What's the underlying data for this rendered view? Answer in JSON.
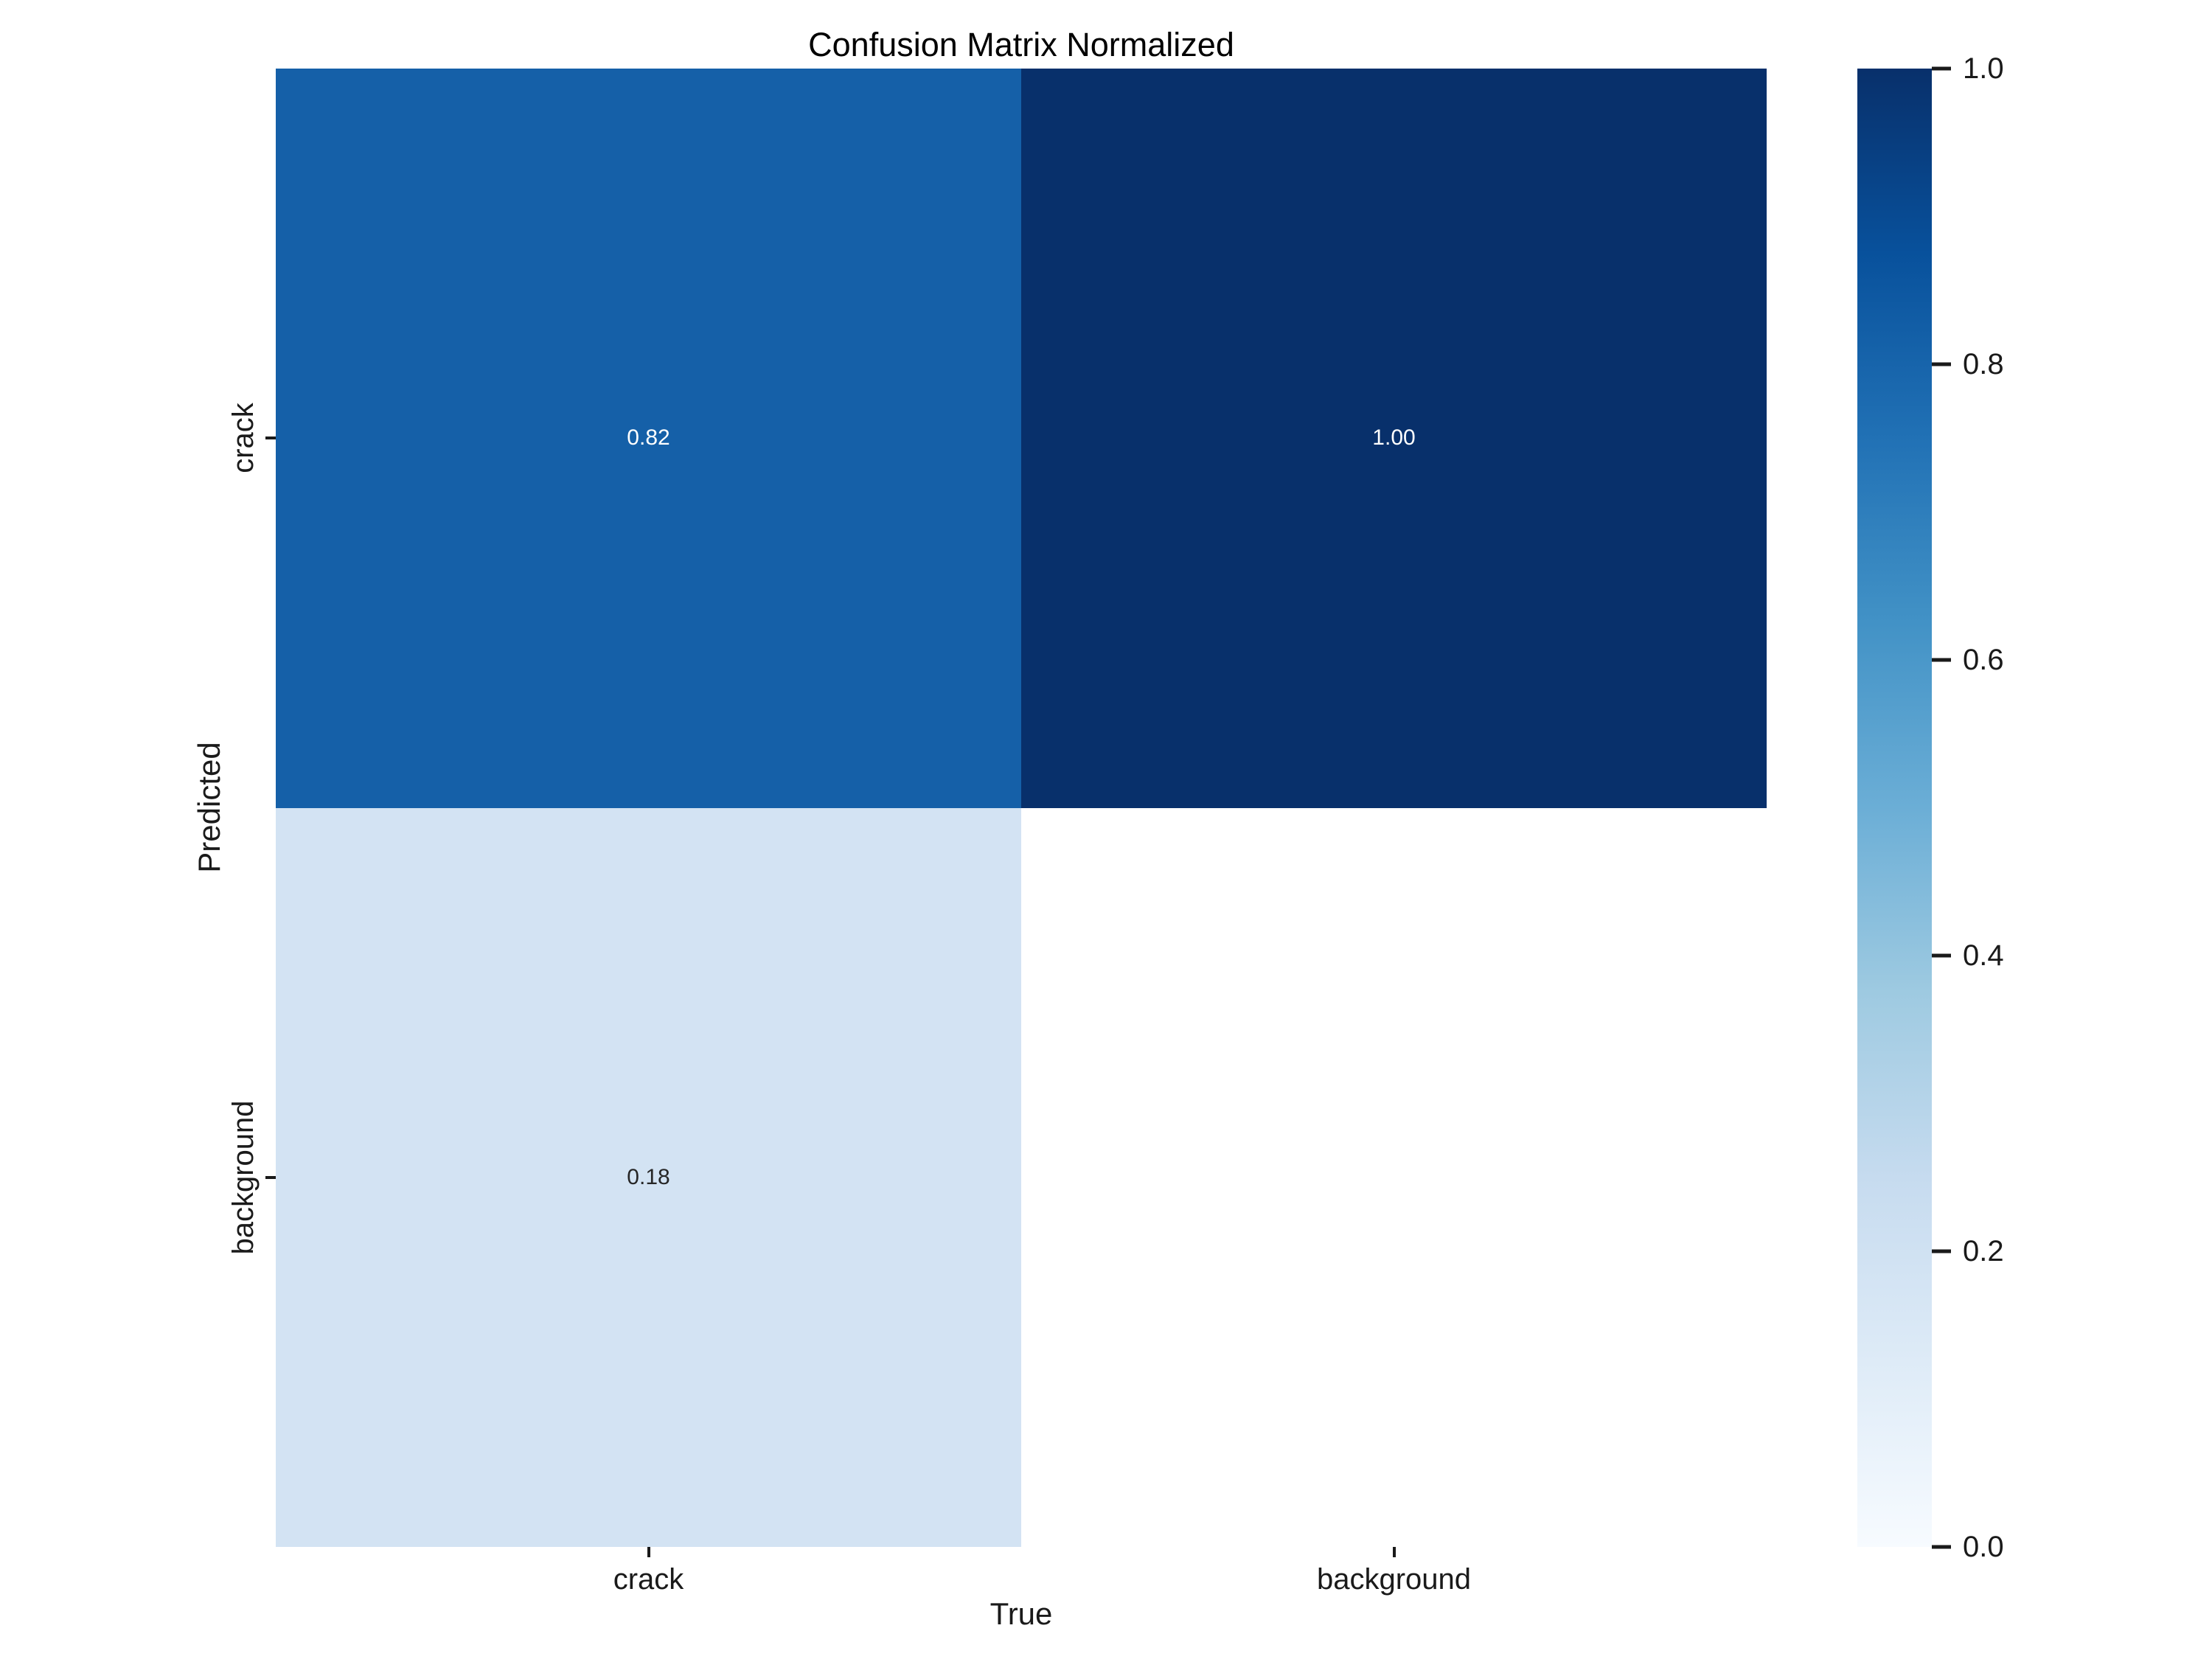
{
  "figure": {
    "background": "#ffffff",
    "text_color": "#1a1a1a"
  },
  "chart_data": {
    "type": "heatmap",
    "title": "Confusion Matrix Normalized",
    "xlabel": "True",
    "ylabel": "Predicted",
    "x_categories": [
      "crack",
      "background"
    ],
    "y_categories": [
      "crack",
      "background"
    ],
    "values": [
      [
        0.82,
        1.0
      ],
      [
        0.18,
        null
      ]
    ],
    "cell_labels": [
      [
        "0.82",
        "1.00"
      ],
      [
        "0.18",
        ""
      ]
    ],
    "cell_colors": [
      [
        "#1560a8",
        "#08306b"
      ],
      [
        "#d3e3f3",
        "#ffffff"
      ]
    ],
    "cell_text_colors": [
      [
        "#ffffff",
        "#ffffff"
      ],
      [
        "#262626",
        "#262626"
      ]
    ],
    "value_range": [
      0.0,
      1.0
    ],
    "grid": false,
    "legend_position": "right-colorbar",
    "colormap": {
      "name": "Blues",
      "stops": [
        "#f7fbff",
        "#deebf7",
        "#c6dbef",
        "#9ecae1",
        "#6baed6",
        "#4292c6",
        "#2171b5",
        "#08519c",
        "#08306b"
      ]
    },
    "colorbar_ticks": [
      "1.0",
      "0.8",
      "0.6",
      "0.4",
      "0.2",
      "0.0"
    ]
  }
}
